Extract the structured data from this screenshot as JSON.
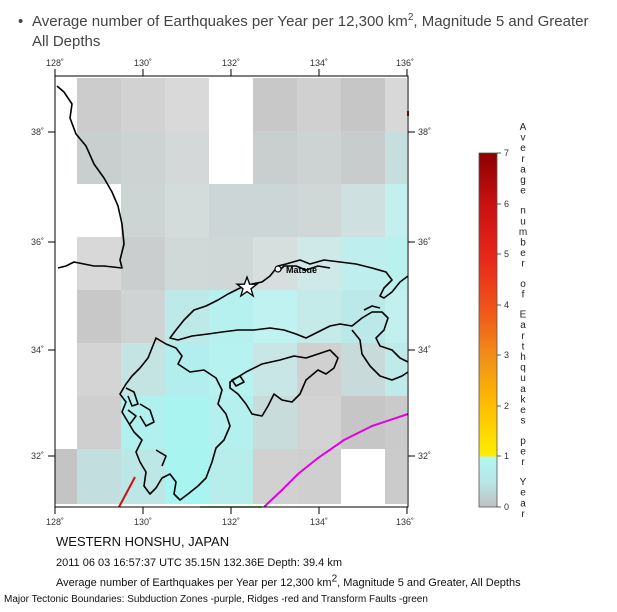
{
  "header": {
    "bullet": "•",
    "title_before_sup": "Average number of Earthquakes per Year per 12,300 km",
    "title_sup": "2",
    "title_after_sup": ", Magnitude 5 and Greater",
    "title_line2": "All Depths"
  },
  "map": {
    "lon_labels": [
      "128˚",
      "130˚",
      "132˚",
      "134˚",
      "136˚"
    ],
    "lat_labels": [
      "38˚",
      "36˚",
      "34˚",
      "32˚"
    ],
    "city_label": "Matsue",
    "epicenter_marker": "star-icon",
    "colorbar": {
      "ticks": [
        "7",
        "6",
        "5",
        "4",
        "3",
        "2",
        "1",
        "0"
      ],
      "vertical_label_lines": [
        "Average",
        "number",
        "of",
        "Earthquakes",
        "per",
        "Year"
      ],
      "colors": {
        "top": "#8b0000",
        "mid_red": "#e8281a",
        "orange": "#f07d1a",
        "yellow": "#ffee00",
        "cyan": "#a8f5f2",
        "gray": "#c0c0c0"
      }
    },
    "boundary_colors": {
      "subduction": "#e000e0",
      "ridge": "#cc1111",
      "transform": "#22aa22"
    }
  },
  "captions": {
    "region": "WESTERN HONSHU, JAPAN",
    "event": "2011 06 03 16:57:37 UTC 35.15N 132.36E Depth: 39.4 km",
    "avg_before_sup": "Average number of Earthquakes per Year per 12,300 km",
    "avg_sup": "2",
    "avg_after_sup": ", Magnitude 5 and Greater, All Depths",
    "boundaries": "Major Tectonic Boundaries: Subduction Zones -purple, Ridges -red and Transform Faults -green"
  }
}
